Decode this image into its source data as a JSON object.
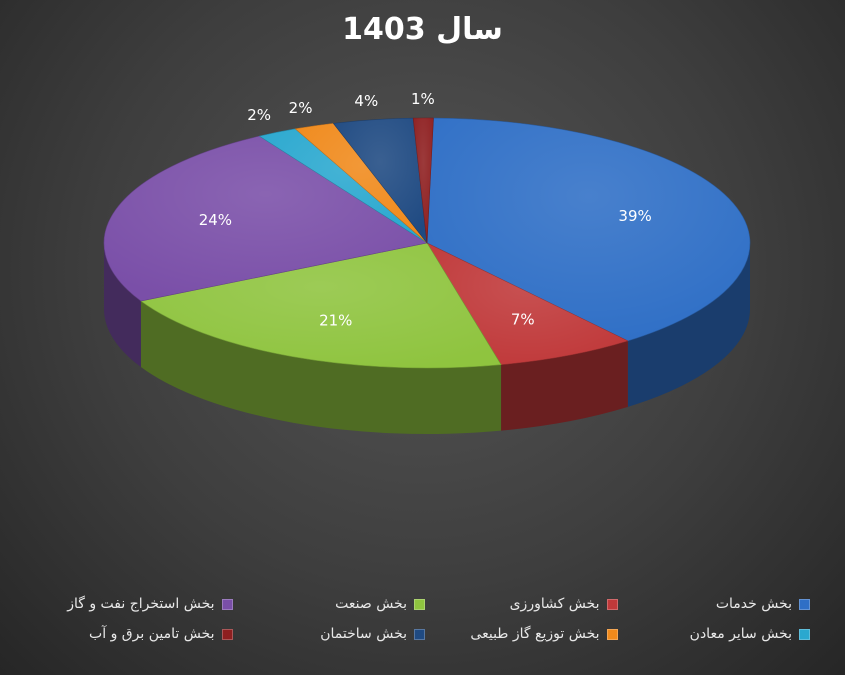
{
  "chart_data": {
    "type": "pie",
    "title": "سال 1403",
    "slices": [
      {
        "name": "بخش خدمات",
        "value": 39,
        "label": "39%",
        "color": "#2f6fc6"
      },
      {
        "name": "بخش کشاورزی",
        "value": 7,
        "label": "7%",
        "color": "#c0393a"
      },
      {
        "name": "بخش صنعت",
        "value": 21,
        "label": "21%",
        "color": "#8fc43f"
      },
      {
        "name": "بخش استخراج نفت و گاز",
        "value": 24,
        "label": "24%",
        "color": "#7a4fa8"
      },
      {
        "name": "بخش سایر معادن",
        "value": 2,
        "label": "2%",
        "color": "#2aa8cf"
      },
      {
        "name": "بخش توزیع گاز طبیعی",
        "value": 2,
        "label": "2%",
        "color": "#f08a1c"
      },
      {
        "name": "بخش ساختمان",
        "value": 4,
        "label": "4%",
        "color": "#1f4a82"
      },
      {
        "name": "بخش تامین برق و آب",
        "value": 1,
        "label": "1%",
        "color": "#8e1f20"
      }
    ],
    "legend_position": "bottom",
    "legend": [
      "بخش خدمات",
      "بخش کشاورزی",
      "بخش صنعت",
      "بخش استخراج نفت و گاز",
      "بخش سایر معادن",
      "بخش توزیع گاز طبیعی",
      "بخش ساختمان",
      "بخش تامین برق و آب"
    ]
  }
}
